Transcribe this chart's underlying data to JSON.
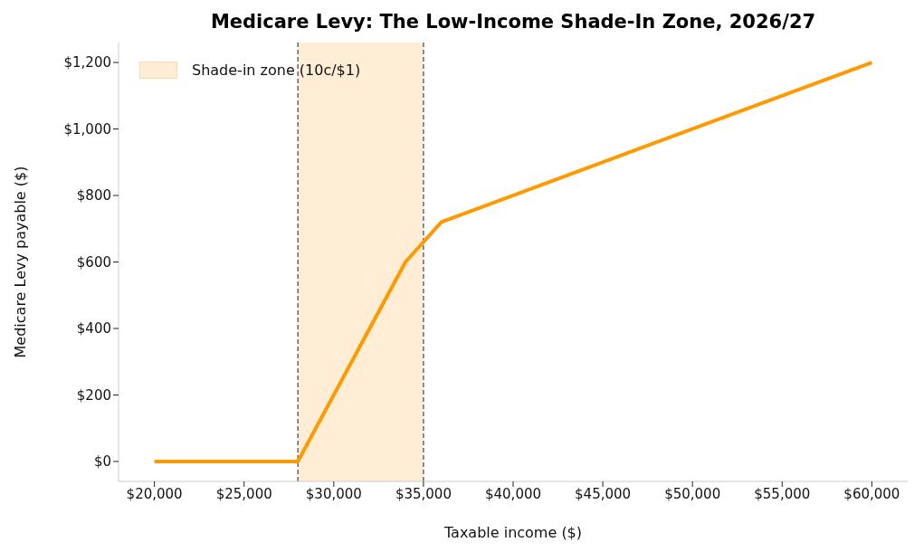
{
  "chart_data": {
    "type": "line",
    "title": "Medicare Levy: The Low-Income Shade-In Zone, 2026/27",
    "xlabel": "Taxable income ($)",
    "ylabel": "Medicare Levy payable ($)",
    "x": [
      20000,
      28000,
      34000,
      36000,
      60000
    ],
    "series": [
      {
        "color": "#ff9900",
        "values": [
          0,
          0,
          600,
          720,
          1200
        ]
      }
    ],
    "xlim": [
      18000,
      62000
    ],
    "xticks": [
      {
        "value": 20000,
        "label": "$20,000"
      },
      {
        "value": 25000,
        "label": "$25,000"
      },
      {
        "value": 30000,
        "label": "$30,000"
      },
      {
        "value": 35000,
        "label": "$35,000"
      },
      {
        "value": 40000,
        "label": "$40,000"
      },
      {
        "value": 45000,
        "label": "$45,000"
      },
      {
        "value": 50000,
        "label": "$50,000"
      },
      {
        "value": 55000,
        "label": "$55,000"
      },
      {
        "value": 60000,
        "label": "$60,000"
      }
    ],
    "ylim": [
      -60,
      1260
    ],
    "yticks": [
      {
        "value": 0,
        "label": "$0"
      },
      {
        "value": 200,
        "label": "$200"
      },
      {
        "value": 400,
        "label": "$400"
      },
      {
        "value": 600,
        "label": "$600"
      },
      {
        "value": 800,
        "label": "$800"
      },
      {
        "value": 1000,
        "label": "$1,000"
      },
      {
        "value": 1200,
        "label": "$1,200"
      }
    ],
    "bands": [
      {
        "axis": "x",
        "from": 28000,
        "to": 35000,
        "label": "Shade-in zone (10c/$1)",
        "color": "#ffedd5"
      }
    ],
    "ref_lines": [
      {
        "axis": "x",
        "value": 28000,
        "color": "#555e6b",
        "line_style": "dashed"
      },
      {
        "axis": "x",
        "value": 35000,
        "color": "#555e6b",
        "line_style": "dashed"
      }
    ],
    "legend": "top left",
    "grid": false,
    "marker": "none",
    "line_style": "solid"
  }
}
